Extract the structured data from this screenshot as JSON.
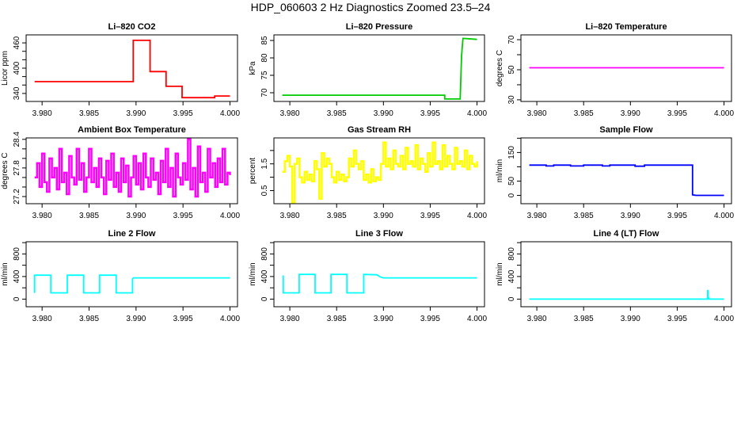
{
  "title": "HDP_060603  2 Hz Diagnostics Zoomed 23.5–24",
  "chart_data": [
    {
      "type": "line",
      "title": "Li–820 CO2",
      "ylabel": "Licor ppm",
      "color": "#ff0000",
      "xlim": [
        3.9783,
        4.0008
      ],
      "ylim": [
        321,
        479
      ],
      "xticks": [
        3.98,
        3.985,
        3.99,
        3.995,
        4.0
      ],
      "xtick_labels": [
        "3.980",
        "3.985",
        "3.990",
        "3.995",
        "4.000"
      ],
      "yticks": [
        340,
        360,
        380,
        400,
        420,
        440,
        460
      ],
      "ytick_labels": {
        "340": "340",
        "400": "400",
        "460": "460"
      },
      "points": [
        [
          3.9792,
          368
        ],
        [
          3.9897,
          368
        ],
        [
          3.9897,
          466
        ],
        [
          3.9915,
          466
        ],
        [
          3.9915,
          392
        ],
        [
          3.9932,
          392
        ],
        [
          3.9932,
          357
        ],
        [
          3.9949,
          357
        ],
        [
          3.9949,
          330
        ],
        [
          3.99837,
          330
        ],
        [
          3.99837,
          334
        ],
        [
          4.0,
          334
        ]
      ]
    },
    {
      "type": "line",
      "title": "Li–820 Pressure",
      "ylabel": "kPa",
      "color": "#00cc00",
      "xlim": [
        3.9783,
        4.0008
      ],
      "ylim": [
        67.5,
        86.6
      ],
      "xticks": [
        3.98,
        3.985,
        3.99,
        3.995,
        4.0
      ],
      "xtick_labels": [
        "3.980",
        "3.985",
        "3.990",
        "3.995",
        "4.000"
      ],
      "yticks": [
        70,
        75,
        80,
        85
      ],
      "ytick_labels": {
        "70": "70",
        "75": "75",
        "80": "80",
        "85": "85"
      },
      "points": [
        [
          3.9792,
          69.3
        ],
        [
          3.99655,
          69.3
        ],
        [
          3.99655,
          68.2
        ],
        [
          3.9982,
          68.2
        ],
        [
          3.99835,
          80.5
        ],
        [
          3.9985,
          85.6
        ],
        [
          3.999,
          85.5
        ],
        [
          4.0,
          85.3
        ]
      ]
    },
    {
      "type": "line",
      "title": "Li–820 Temperature",
      "ylabel": "degrees C",
      "color": "#ff00ff",
      "xlim": [
        3.9783,
        4.0008
      ],
      "ylim": [
        28.9,
        73.2
      ],
      "xticks": [
        3.98,
        3.985,
        3.99,
        3.995,
        4.0
      ],
      "xtick_labels": [
        "3.980",
        "3.985",
        "3.990",
        "3.995",
        "4.000"
      ],
      "yticks": [
        30,
        40,
        50,
        60,
        70
      ],
      "ytick_labels": {
        "30": "30",
        "50": "50",
        "70": "70"
      },
      "points": [
        [
          3.9792,
          51.3
        ],
        [
          4.0,
          51.3
        ]
      ]
    },
    {
      "type": "line",
      "title": "Ambient Box Temperature",
      "ylabel": "degrees C",
      "color": "#ff00ff",
      "xlim": [
        3.9783,
        4.0008
      ],
      "ylim": [
        27.05,
        28.43
      ],
      "xticks": [
        3.98,
        3.985,
        3.99,
        3.995,
        4.0
      ],
      "xtick_labels": [
        "3.980",
        "3.985",
        "3.990",
        "3.995",
        "4.000"
      ],
      "yticks": [
        27.2,
        27.4,
        27.6,
        27.8,
        28.0,
        28.2,
        28.4
      ],
      "ytick_labels": {
        "27.2": "27.2",
        "27.8": "27.8",
        "28.4": "28.4"
      },
      "x_range": [
        3.9792,
        4.0
      ],
      "values": [
        27.6,
        27.9,
        27.4,
        28.1,
        27.5,
        27.3,
        28.0,
        27.6,
        27.8,
        27.35,
        28.2,
        27.5,
        27.7,
        27.25,
        28.05,
        27.6,
        27.45,
        28.2,
        27.55,
        27.9,
        27.3,
        27.6,
        28.2,
        27.5,
        27.8,
        27.4,
        28.0,
        27.6,
        27.25,
        27.95,
        27.55,
        28.1,
        27.4,
        27.7,
        27.3,
        28.0,
        27.5,
        27.85,
        27.2,
        27.6,
        28.05,
        27.45,
        27.9,
        27.35,
        28.1,
        27.6,
        27.4,
        28.0,
        27.55,
        27.7,
        27.25,
        27.95,
        27.5,
        28.2,
        27.4,
        27.8,
        27.2,
        28.1,
        27.6,
        27.45,
        27.9,
        27.55,
        28.4,
        27.35,
        27.8,
        27.2,
        28.25,
        27.5,
        27.7,
        27.3,
        28.2,
        27.6,
        27.9,
        27.4,
        28.0,
        27.5,
        28.2,
        27.45,
        27.7,
        27.65
      ]
    },
    {
      "type": "line",
      "title": "Gas Stream RH",
      "ylabel": "percent",
      "color": "#ffff00",
      "xlim": [
        3.9783,
        4.0008
      ],
      "ylim": [
        0.01,
        2.47
      ],
      "xticks": [
        3.98,
        3.985,
        3.99,
        3.995,
        4.0
      ],
      "xtick_labels": [
        "3.980",
        "3.985",
        "3.990",
        "3.995",
        "4.000"
      ],
      "yticks": [
        0.5,
        1.0,
        1.5,
        2.0
      ],
      "ytick_labels": {
        "0.5": "0.5",
        "1.5": "1.5"
      },
      "x_range": [
        3.9792,
        4.0
      ],
      "values": [
        1.2,
        1.6,
        1.8,
        1.4,
        0.05,
        1.5,
        1.7,
        1.0,
        0.8,
        1.2,
        0.9,
        1.1,
        0.85,
        1.6,
        1.3,
        0.2,
        1.9,
        1.4,
        1.7,
        1.5,
        1.0,
        0.8,
        1.2,
        0.9,
        1.1,
        0.85,
        1.0,
        1.7,
        1.4,
        2.0,
        1.5,
        1.3,
        1.6,
        0.9,
        1.1,
        0.8,
        1.3,
        0.85,
        1.0,
        0.9,
        1.5,
        2.3,
        1.4,
        1.7,
        1.3,
        2.0,
        1.5,
        1.4,
        1.8,
        1.3,
        2.1,
        1.5,
        1.6,
        1.4,
        2.2,
        1.3,
        1.7,
        1.5,
        1.2,
        1.9,
        1.4,
        2.3,
        1.5,
        1.6,
        1.3,
        2.2,
        1.4,
        1.8,
        1.5,
        1.3,
        2.1,
        1.5,
        1.6,
        1.4,
        2.0,
        1.3,
        1.8,
        1.5,
        1.4,
        1.6
      ]
    },
    {
      "type": "line",
      "title": "Sample Flow",
      "ylabel": "ml/min",
      "color": "#0000ff",
      "xlim": [
        3.9783,
        4.0008
      ],
      "ylim": [
        -29,
        201
      ],
      "xticks": [
        3.98,
        3.985,
        3.99,
        3.995,
        4.0
      ],
      "xtick_labels": [
        "3.980",
        "3.985",
        "3.990",
        "3.995",
        "4.000"
      ],
      "yticks": [
        0,
        50,
        100,
        150,
        200
      ],
      "ytick_labels": {
        "0": "0",
        "50": "50",
        "150": "150"
      },
      "points": [
        [
          3.9792,
          106
        ],
        [
          3.981,
          106
        ],
        [
          3.981,
          103
        ],
        [
          3.9818,
          103
        ],
        [
          3.9818,
          106
        ],
        [
          3.9836,
          106
        ],
        [
          3.9836,
          103
        ],
        [
          3.985,
          103
        ],
        [
          3.985,
          106
        ],
        [
          3.987,
          106
        ],
        [
          3.987,
          103
        ],
        [
          3.9878,
          103
        ],
        [
          3.9878,
          106
        ],
        [
          3.9905,
          106
        ],
        [
          3.9905,
          102
        ],
        [
          3.9915,
          102
        ],
        [
          3.9915,
          106
        ],
        [
          3.99664,
          106
        ],
        [
          3.99664,
          2
        ],
        [
          3.997,
          0
        ],
        [
          4.0,
          0
        ]
      ]
    },
    {
      "type": "line",
      "title": "Line 2 Flow",
      "ylabel": "ml/min",
      "color": "#00ffff",
      "xlim": [
        3.9783,
        4.0008
      ],
      "ylim": [
        -135,
        1016
      ],
      "xticks": [
        3.98,
        3.985,
        3.99,
        3.995,
        4.0
      ],
      "xtick_labels": [
        "3.980",
        "3.985",
        "3.990",
        "3.995",
        "4.000"
      ],
      "yticks": [
        0,
        200,
        400,
        600,
        800,
        1000
      ],
      "ytick_labels": {
        "0": "0",
        "400": "400",
        "800": "800"
      },
      "points": [
        [
          3.9792,
          110
        ],
        [
          3.9792,
          424
        ],
        [
          3.98093,
          424
        ],
        [
          3.98093,
          110
        ],
        [
          3.98268,
          110
        ],
        [
          3.98268,
          424
        ],
        [
          3.98443,
          424
        ],
        [
          3.98443,
          110
        ],
        [
          3.98612,
          110
        ],
        [
          3.98612,
          424
        ],
        [
          3.98789,
          424
        ],
        [
          3.98789,
          110
        ],
        [
          3.98963,
          110
        ],
        [
          3.98963,
          355
        ],
        [
          3.9897,
          376
        ],
        [
          4.0,
          376
        ]
      ]
    },
    {
      "type": "line",
      "title": "Line 3 Flow",
      "ylabel": "ml/min",
      "color": "#00ffff",
      "xlim": [
        3.9783,
        4.0008
      ],
      "ylim": [
        -135,
        1016
      ],
      "xticks": [
        3.98,
        3.985,
        3.99,
        3.995,
        4.0
      ],
      "xtick_labels": [
        "3.980",
        "3.985",
        "3.990",
        "3.995",
        "4.000"
      ],
      "yticks": [
        0,
        200,
        400,
        600,
        800,
        1000
      ],
      "ytick_labels": {
        "0": "0",
        "400": "400",
        "800": "800"
      },
      "points": [
        [
          3.9793,
          420
        ],
        [
          3.9793,
          110
        ],
        [
          3.981,
          110
        ],
        [
          3.981,
          438
        ],
        [
          3.9827,
          438
        ],
        [
          3.9827,
          110
        ],
        [
          3.9844,
          110
        ],
        [
          3.9844,
          438
        ],
        [
          3.9861,
          438
        ],
        [
          3.9861,
          110
        ],
        [
          3.9879,
          110
        ],
        [
          3.9879,
          438
        ],
        [
          3.9893,
          430
        ],
        [
          3.9897,
          390
        ],
        [
          3.99,
          376
        ],
        [
          4.0,
          376
        ]
      ]
    },
    {
      "type": "line",
      "title": "Line 4 (LT) Flow",
      "ylabel": "ml/min",
      "color": "#00ffff",
      "xlim": [
        3.9783,
        4.0008
      ],
      "ylim": [
        -135,
        1016
      ],
      "xticks": [
        3.98,
        3.985,
        3.99,
        3.995,
        4.0
      ],
      "xtick_labels": [
        "3.980",
        "3.985",
        "3.990",
        "3.995",
        "4.000"
      ],
      "yticks": [
        0,
        200,
        400,
        600,
        800,
        1000
      ],
      "ytick_labels": {
        "0": "0",
        "400": "400",
        "800": "800"
      },
      "points": [
        [
          3.9792,
          0
        ],
        [
          3.99825,
          0
        ],
        [
          3.99825,
          150
        ],
        [
          3.9983,
          150
        ],
        [
          3.9983,
          20
        ],
        [
          3.9984,
          20
        ],
        [
          3.9984,
          0
        ],
        [
          4.0,
          0
        ]
      ]
    }
  ]
}
